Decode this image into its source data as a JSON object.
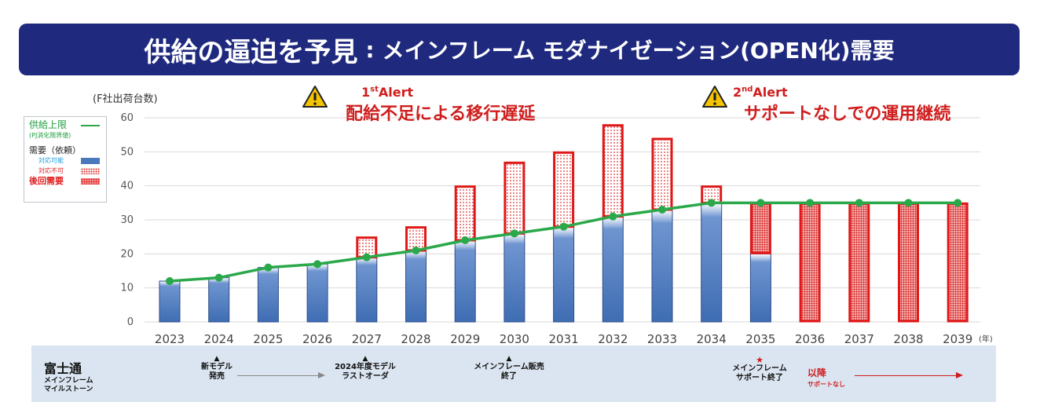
{
  "title": {
    "main": "供給の逼迫を予見",
    "separator": ":",
    "sub": "メインフレーム モダナイゼーション(OPEN化)需要"
  },
  "legend": {
    "supply": "供給上限",
    "supply_symbol": "—",
    "supply_note": "(PJ消化限界値)",
    "demand": "需要（依頼）",
    "feasible": "対応可能",
    "infeasible": "対応不可",
    "deferred": "後回需要"
  },
  "alerts": [
    {
      "num": "1",
      "sup": "st",
      "label": "Alert",
      "message": "配給不足による移行遅延"
    },
    {
      "num": "2",
      "sup": "nd",
      "label": "Alert",
      "message": "サポートなしでの運用継続"
    }
  ],
  "colors": {
    "title_bg": "#1f2a7e",
    "bar_blue": "#4a78bd",
    "alert_red": "#d01e1e",
    "supply_green": "#2aa84a",
    "milestone_bg": "#dbe5f1"
  },
  "chart_data": {
    "type": "bar",
    "ylabel": "(F社出荷台数)",
    "xunit": "(年)",
    "ylim": [
      0,
      60
    ],
    "yticks": [
      0,
      10,
      20,
      30,
      40,
      50,
      60
    ],
    "grid": true,
    "categories": [
      "2023",
      "2024",
      "2025",
      "2026",
      "2027",
      "2028",
      "2029",
      "2030",
      "2031",
      "2032",
      "2033",
      "2034",
      "2035",
      "2036",
      "2037",
      "2038",
      "2039"
    ],
    "series": [
      {
        "name": "対応可能",
        "values": [
          12,
          13,
          16,
          17,
          19,
          21,
          24,
          26,
          28,
          31,
          33,
          35,
          20,
          0,
          0,
          0,
          0
        ]
      },
      {
        "name": "対応不可",
        "values": [
          0,
          0,
          0,
          0,
          6,
          7,
          16,
          21,
          22,
          27,
          21,
          5,
          0,
          0,
          0,
          0,
          0
        ]
      },
      {
        "name": "後回需要",
        "values": [
          0,
          0,
          0,
          0,
          0,
          0,
          0,
          0,
          0,
          0,
          0,
          0,
          15,
          35,
          35,
          35,
          35
        ]
      },
      {
        "name": "供給上限",
        "type": "line",
        "values": [
          12,
          13,
          16,
          17,
          19,
          21,
          24,
          26,
          28,
          31,
          33,
          35,
          35,
          35,
          35,
          35,
          35
        ]
      }
    ]
  },
  "milestones": {
    "company": "富士通",
    "caption_line1": "メインフレーム",
    "caption_line2": "マイルストーン",
    "triangle": "▲",
    "star": "★",
    "items": [
      {
        "line1": "新モデル",
        "line2": "発売"
      },
      {
        "line1": "2024年度モデル",
        "line2": "ラストオーダ"
      },
      {
        "line1": "メインフレーム販売",
        "line2": "終了"
      },
      {
        "line1": "メインフレーム",
        "line2": "サポート終了"
      }
    ],
    "after_label": "以降",
    "after_note": "サポートなし"
  }
}
